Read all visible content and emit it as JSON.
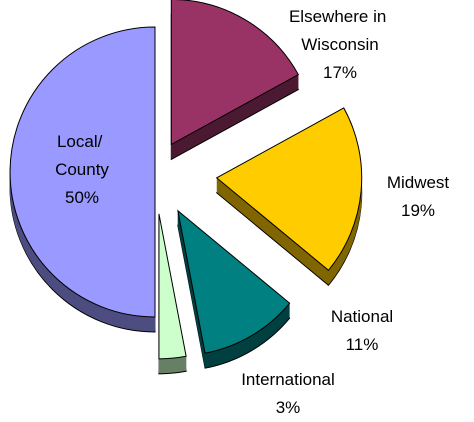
{
  "chart_data": {
    "type": "pie",
    "categories": [
      "Elsewhere in Wisconsin",
      "Midwest",
      "National",
      "International",
      "Local/ County"
    ],
    "values": [
      17,
      19,
      11,
      3,
      50
    ],
    "value_labels": [
      "17%",
      "19%",
      "11%",
      "3%",
      "50%"
    ],
    "colors": [
      "#993366",
      "#ffcc00",
      "#008080",
      "#ccffcc",
      "#9999ff"
    ]
  }
}
